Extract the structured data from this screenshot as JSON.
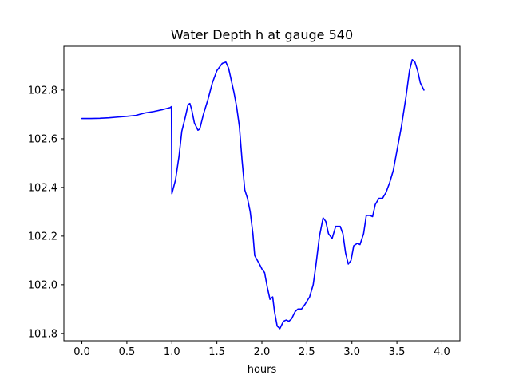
{
  "chart_data": {
    "type": "line",
    "title": "Water Depth h at gauge 540",
    "xlabel": "hours",
    "ylabel": "",
    "xlim": [
      -0.2,
      4.2
    ],
    "ylim": [
      101.77,
      102.98
    ],
    "x_ticks": [
      0.0,
      0.5,
      1.0,
      1.5,
      2.0,
      2.5,
      3.0,
      3.5,
      4.0
    ],
    "x_tick_labels": [
      "0.0",
      "0.5",
      "1.0",
      "1.5",
      "2.0",
      "2.5",
      "3.0",
      "3.5",
      "4.0"
    ],
    "y_ticks": [
      101.8,
      102.0,
      102.2,
      102.4,
      102.6,
      102.8
    ],
    "y_tick_labels": [
      "101.8",
      "102.0",
      "102.2",
      "102.4",
      "102.6",
      "102.8"
    ],
    "grid": false,
    "series": [
      {
        "color": "#0000ff",
        "points": [
          [
            0.0,
            102.683
          ],
          [
            0.1,
            102.683
          ],
          [
            0.2,
            102.684
          ],
          [
            0.3,
            102.686
          ],
          [
            0.4,
            102.689
          ],
          [
            0.5,
            102.692
          ],
          [
            0.6,
            102.696
          ],
          [
            0.7,
            102.706
          ],
          [
            0.8,
            102.712
          ],
          [
            0.9,
            102.72
          ],
          [
            0.98,
            102.728
          ],
          [
            0.995,
            102.732
          ],
          [
            1.0,
            102.374
          ],
          [
            1.04,
            102.43
          ],
          [
            1.08,
            102.53
          ],
          [
            1.11,
            102.63
          ],
          [
            1.15,
            102.69
          ],
          [
            1.18,
            102.74
          ],
          [
            1.2,
            102.745
          ],
          [
            1.22,
            102.72
          ],
          [
            1.25,
            102.665
          ],
          [
            1.29,
            102.635
          ],
          [
            1.31,
            102.64
          ],
          [
            1.35,
            102.7
          ],
          [
            1.4,
            102.76
          ],
          [
            1.45,
            102.83
          ],
          [
            1.5,
            102.88
          ],
          [
            1.56,
            102.91
          ],
          [
            1.6,
            102.915
          ],
          [
            1.63,
            102.89
          ],
          [
            1.66,
            102.84
          ],
          [
            1.69,
            102.79
          ],
          [
            1.72,
            102.73
          ],
          [
            1.75,
            102.65
          ],
          [
            1.78,
            102.51
          ],
          [
            1.81,
            102.39
          ],
          [
            1.84,
            102.355
          ],
          [
            1.87,
            102.3
          ],
          [
            1.9,
            102.21
          ],
          [
            1.92,
            102.12
          ],
          [
            1.95,
            102.1
          ],
          [
            1.98,
            102.08
          ],
          [
            2.0,
            102.065
          ],
          [
            2.03,
            102.05
          ],
          [
            2.06,
            101.99
          ],
          [
            2.09,
            101.94
          ],
          [
            2.12,
            101.95
          ],
          [
            2.14,
            101.89
          ],
          [
            2.17,
            101.83
          ],
          [
            2.2,
            101.82
          ],
          [
            2.24,
            101.85
          ],
          [
            2.27,
            101.855
          ],
          [
            2.3,
            101.85
          ],
          [
            2.33,
            101.86
          ],
          [
            2.37,
            101.89
          ],
          [
            2.4,
            101.9
          ],
          [
            2.44,
            101.9
          ],
          [
            2.48,
            101.92
          ],
          [
            2.53,
            101.95
          ],
          [
            2.57,
            102.0
          ],
          [
            2.6,
            102.08
          ],
          [
            2.64,
            102.2
          ],
          [
            2.68,
            102.275
          ],
          [
            2.71,
            102.26
          ],
          [
            2.74,
            102.21
          ],
          [
            2.78,
            102.19
          ],
          [
            2.82,
            102.24
          ],
          [
            2.87,
            102.24
          ],
          [
            2.9,
            102.21
          ],
          [
            2.93,
            102.13
          ],
          [
            2.96,
            102.085
          ],
          [
            2.99,
            102.1
          ],
          [
            3.02,
            102.16
          ],
          [
            3.06,
            102.17
          ],
          [
            3.09,
            102.165
          ],
          [
            3.13,
            102.21
          ],
          [
            3.16,
            102.285
          ],
          [
            3.2,
            102.285
          ],
          [
            3.23,
            102.28
          ],
          [
            3.26,
            102.33
          ],
          [
            3.3,
            102.355
          ],
          [
            3.34,
            102.355
          ],
          [
            3.38,
            102.38
          ],
          [
            3.42,
            102.42
          ],
          [
            3.46,
            102.47
          ],
          [
            3.5,
            102.55
          ],
          [
            3.55,
            102.65
          ],
          [
            3.6,
            102.77
          ],
          [
            3.64,
            102.88
          ],
          [
            3.67,
            102.925
          ],
          [
            3.7,
            102.915
          ],
          [
            3.73,
            102.88
          ],
          [
            3.76,
            102.83
          ],
          [
            3.8,
            102.8
          ]
        ]
      }
    ]
  }
}
